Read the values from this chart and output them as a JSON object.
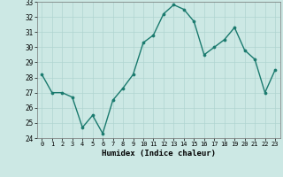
{
  "x": [
    0,
    1,
    2,
    3,
    4,
    5,
    6,
    7,
    8,
    9,
    10,
    11,
    12,
    13,
    14,
    15,
    16,
    17,
    18,
    19,
    20,
    21,
    22,
    23
  ],
  "y": [
    28.2,
    27.0,
    27.0,
    26.7,
    24.7,
    25.5,
    24.3,
    26.5,
    27.3,
    28.2,
    30.3,
    30.8,
    32.2,
    32.8,
    32.5,
    31.7,
    29.5,
    30.0,
    30.5,
    31.3,
    29.8,
    29.2,
    27.0,
    28.5
  ],
  "xlabel": "Humidex (Indice chaleur)",
  "ylim": [
    24,
    33
  ],
  "yticks": [
    24,
    25,
    26,
    27,
    28,
    29,
    30,
    31,
    32,
    33
  ],
  "xtick_labels": [
    "0",
    "1",
    "2",
    "3",
    "4",
    "5",
    "6",
    "7",
    "8",
    "9",
    "10",
    "11",
    "12",
    "13",
    "14",
    "15",
    "16",
    "17",
    "18",
    "19",
    "20",
    "21",
    "22",
    "23"
  ],
  "line_color": "#1a7a6e",
  "marker_color": "#1a7a6e",
  "bg_color": "#cce8e4",
  "grid_color": "#b0d4d0",
  "fig_bg": "#cce8e4"
}
